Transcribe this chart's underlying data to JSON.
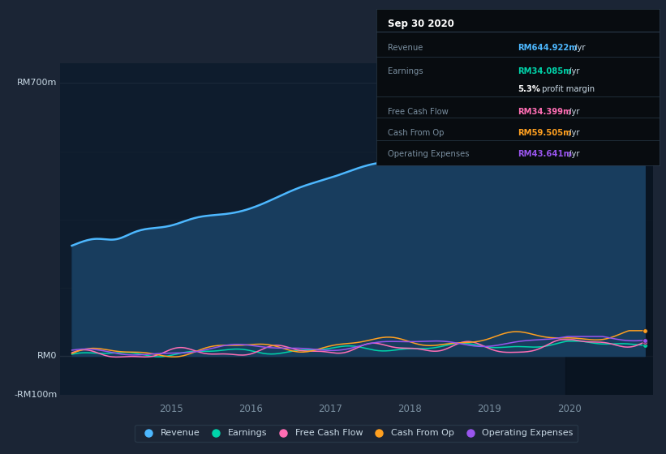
{
  "bg_color": "#1b2535",
  "plot_bg_color": "#0e1c2d",
  "chart_bg_dark": "#0a1628",
  "grid_color": "#263444",
  "axis_label_color": "#7a8fa0",
  "text_color": "#c8d8e4",
  "title": "Sep 30 2020",
  "ylim": [
    -100,
    750
  ],
  "ytick_positions": [
    -100,
    0,
    700
  ],
  "ytick_labels": [
    "-RM100m",
    "RM0",
    "RM700m"
  ],
  "xlim_start": 2013.6,
  "xlim_end": 2021.05,
  "xticks": [
    2015,
    2016,
    2017,
    2018,
    2019,
    2020
  ],
  "rev_color": "#4db8ff",
  "rev_fill": "#183d5e",
  "earnings_color": "#00d4aa",
  "fcf_color": "#ff6eb4",
  "cop_color": "#ffa020",
  "opex_color": "#9955ee",
  "legend": [
    {
      "label": "Revenue",
      "color": "#4db8ff"
    },
    {
      "label": "Earnings",
      "color": "#00d4aa"
    },
    {
      "label": "Free Cash Flow",
      "color": "#ff6eb4"
    },
    {
      "label": "Cash From Op",
      "color": "#ffa020"
    },
    {
      "label": "Operating Expenses",
      "color": "#9955ee"
    }
  ],
  "infobox_bg": "#080c10",
  "infobox_border": "#2a3a4a",
  "infobox_title": "Sep 30 2020",
  "infobox_label_color": "#7a8fa0",
  "infobox_text_color": "#c8d8e4",
  "infobox_rows": [
    {
      "label": "Revenue",
      "value": "RM644.922m",
      "unit": " /yr",
      "color": "#4db8ff"
    },
    {
      "label": "Earnings",
      "value": "RM34.085m",
      "unit": " /yr",
      "color": "#00d4aa"
    },
    {
      "label": "",
      "value": "5.3%",
      "unit": " profit margin",
      "color": "#ffffff"
    },
    {
      "label": "Free Cash Flow",
      "value": "RM34.399m",
      "unit": " /yr",
      "color": "#ff6eb4"
    },
    {
      "label": "Cash From Op",
      "value": "RM59.505m",
      "unit": " /yr",
      "color": "#ffa020"
    },
    {
      "label": "Operating Expenses",
      "value": "RM43.641m",
      "unit": " /yr",
      "color": "#9955ee"
    }
  ]
}
